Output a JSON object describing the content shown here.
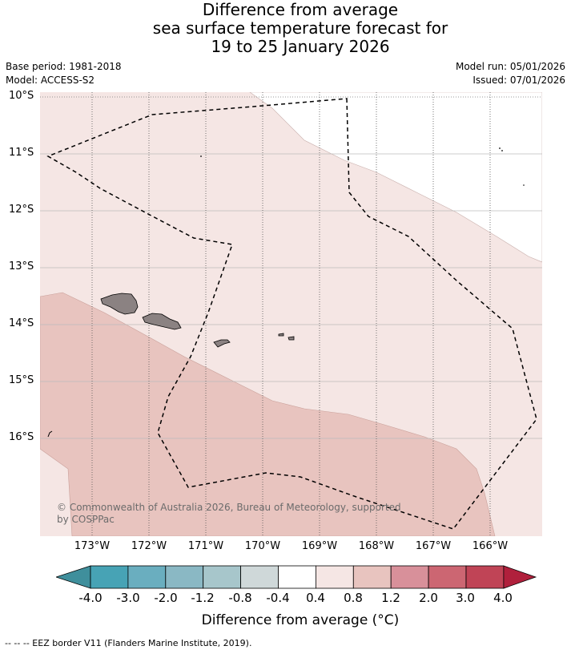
{
  "title": {
    "line1": "Difference from average",
    "line2": "sea surface temperature forecast for",
    "line3": "19 to 25 January 2026"
  },
  "meta": {
    "base_period": "Base period: 1981-2018",
    "model": "Model: ACCESS-S2",
    "model_run": "Model run: 05/01/2026",
    "issued": "Issued: 07/01/2026"
  },
  "map": {
    "lat_labels": [
      "10°S",
      "11°S",
      "12°S",
      "13°S",
      "14°S",
      "15°S",
      "16°S"
    ],
    "lon_labels": [
      "173°W",
      "172°W",
      "171°W",
      "170°W",
      "169°W",
      "168°W",
      "167°W",
      "166°W"
    ],
    "copyright": "© Commonwealth of Australia 2026, Bureau of Meteorology, supported by COSPPac",
    "colors": {
      "land": "#8b8282",
      "band_0_4_0_8": "#f5e6e4",
      "band_0_8_1_2": "#e8c4bf"
    }
  },
  "colorbar": {
    "labels": [
      "-4.0",
      "-3.0",
      "-2.0",
      "-1.2",
      "-0.8",
      "-0.4",
      "0.4",
      "0.8",
      "1.2",
      "2.0",
      "3.0",
      "4.0"
    ],
    "colors": [
      "#3f8f9c",
      "#47a3b5",
      "#6aaebf",
      "#8ab8c4",
      "#a7c6cb",
      "#cfd8d9",
      "#ffffff",
      "#f5e6e4",
      "#e8c4bf",
      "#d8909a",
      "#cc6672",
      "#c04456",
      "#b0203c"
    ],
    "title": "Difference from average (°C)"
  },
  "footer": "-- -- -- EEZ border V11 (Flanders Marine Institute, 2019)."
}
